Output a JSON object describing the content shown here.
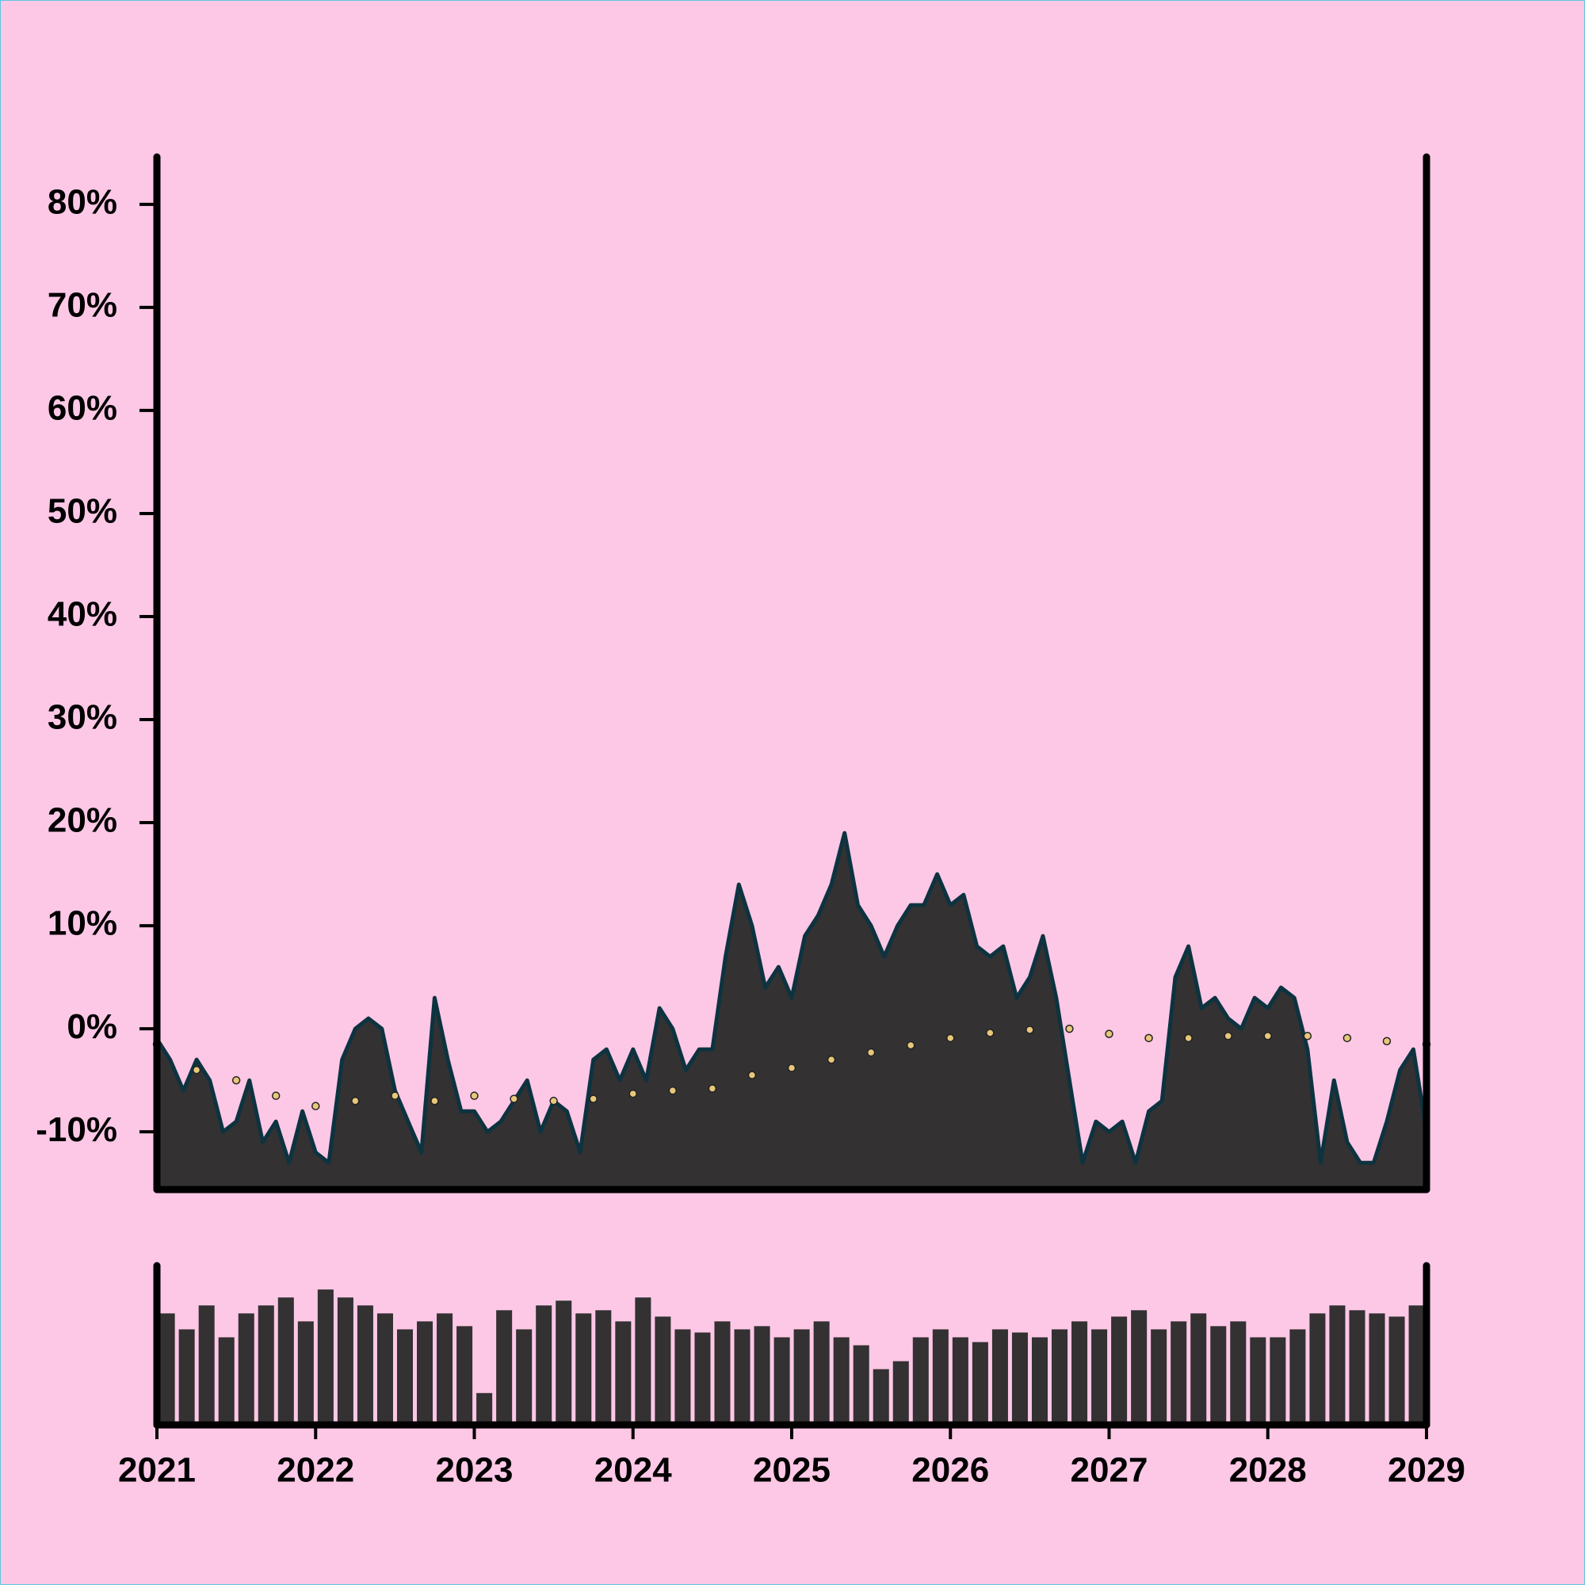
{
  "chart_data": [
    {
      "type": "area",
      "xlim": [
        2021,
        2029
      ],
      "ylim": [
        -15.6,
        84.6
      ],
      "yticks": [
        {
          "value": -10,
          "label": "-10%"
        },
        {
          "value": 0,
          "label": "0%"
        },
        {
          "value": 10,
          "label": "10%"
        },
        {
          "value": 20,
          "label": "20%"
        },
        {
          "value": 30,
          "label": "30%"
        },
        {
          "value": 40,
          "label": "40%"
        },
        {
          "value": 50,
          "label": "50%"
        },
        {
          "value": 60,
          "label": "60%"
        },
        {
          "value": 70,
          "label": "70%"
        },
        {
          "value": 80,
          "label": "80%"
        }
      ],
      "series": [
        {
          "type": "area",
          "color": "#333132",
          "line_color": "#0d3340",
          "x": [
            2021,
            2021.083,
            2021.167,
            2021.25,
            2021.333,
            2021.417,
            2021.5,
            2021.583,
            2021.667,
            2021.75,
            2021.833,
            2021.917,
            2022,
            2022.083,
            2022.167,
            2022.25,
            2022.333,
            2022.417,
            2022.5,
            2022.583,
            2022.667,
            2022.75,
            2022.833,
            2022.917,
            2023,
            2023.083,
            2023.167,
            2023.25,
            2023.333,
            2023.417,
            2023.5,
            2023.583,
            2023.667,
            2023.75,
            2023.833,
            2023.917,
            2024,
            2024.083,
            2024.167,
            2024.25,
            2024.333,
            2024.417,
            2024.5,
            2024.583,
            2024.667,
            2024.75,
            2024.833,
            2024.917,
            2025,
            2025.083,
            2025.167,
            2025.25,
            2025.333,
            2025.417,
            2025.5,
            2025.583,
            2025.667,
            2025.75,
            2025.833,
            2025.917,
            2026,
            2026.083,
            2026.167,
            2026.25,
            2026.333,
            2026.417,
            2026.5,
            2026.583,
            2026.667,
            2026.75,
            2026.833,
            2026.917,
            2027,
            2027.083,
            2027.167,
            2027.25,
            2027.333,
            2027.417,
            2027.5,
            2027.583,
            2027.667,
            2027.75,
            2027.833,
            2027.917,
            2028,
            2028.083,
            2028.167,
            2028.25,
            2028.333,
            2028.417,
            2028.5,
            2028.583,
            2028.667,
            2028.75,
            2028.833,
            2028.917,
            2029
          ],
          "values": [
            -1,
            -3,
            -6,
            -3,
            -5,
            -10,
            -9,
            -5,
            -11,
            -9,
            -13,
            -8,
            -12,
            -13,
            -3,
            0,
            1,
            0,
            -6,
            -9,
            -12,
            3,
            -3,
            -8,
            -8,
            -10,
            -9,
            -7,
            -5,
            -10,
            -7,
            -8,
            -12,
            -3,
            -2,
            -5,
            -2,
            -5,
            2,
            0,
            -4,
            -2,
            -2,
            7,
            14,
            10,
            4,
            6,
            3,
            9,
            11,
            14,
            19,
            12,
            10,
            7,
            10,
            12,
            12,
            15,
            12,
            13,
            8,
            7,
            8,
            3,
            5,
            9,
            3,
            -5,
            -13,
            -9,
            -10,
            -9,
            -13,
            -8,
            -7,
            5,
            8,
            2,
            3,
            1,
            0,
            3,
            2,
            4,
            3,
            -2,
            -13,
            -5,
            -11,
            -13,
            -13,
            -9,
            -4,
            -2,
            -10
          ]
        },
        {
          "type": "line",
          "color": "#e8c77a",
          "x": [
            2021,
            2021.25,
            2021.5,
            2021.75,
            2022,
            2022.25,
            2022.5,
            2022.75,
            2023,
            2023.25,
            2023.5,
            2023.75,
            2024,
            2024.25,
            2024.5,
            2024.75,
            2025,
            2025.25,
            2025.5,
            2025.75,
            2026,
            2026.25,
            2026.5,
            2026.75,
            2027,
            2027.25,
            2027.5,
            2027.75,
            2028,
            2028.25,
            2028.5,
            2028.75,
            2029
          ],
          "values": [
            -1.5,
            -4,
            -5,
            -6.5,
            -7.5,
            -7,
            -6.5,
            -7,
            -6.5,
            -6.8,
            -7,
            -6.8,
            -6.3,
            -6,
            -5.8,
            -4.5,
            -3.8,
            -3,
            -2.3,
            -1.6,
            -0.9,
            -0.4,
            -0.1,
            0,
            -0.5,
            -0.9,
            -0.9,
            -0.7,
            -0.7,
            -0.7,
            -0.9,
            -1.2,
            -1.5
          ]
        }
      ]
    },
    {
      "type": "bar",
      "color": "#333132",
      "xlim": [
        2021,
        2029
      ],
      "ylim": [
        0,
        100
      ],
      "xticks": [
        2021,
        2022,
        2023,
        2024,
        2025,
        2026,
        2027,
        2028,
        2029
      ],
      "x": [
        2021.063,
        2021.188,
        2021.313,
        2021.438,
        2021.563,
        2021.688,
        2021.813,
        2021.938,
        2022.063,
        2022.188,
        2022.313,
        2022.438,
        2022.563,
        2022.688,
        2022.813,
        2022.938,
        2023.063,
        2023.188,
        2023.313,
        2023.438,
        2023.563,
        2023.688,
        2023.813,
        2023.938,
        2024.063,
        2024.188,
        2024.313,
        2024.438,
        2024.563,
        2024.688,
        2024.813,
        2024.938,
        2025.063,
        2025.188,
        2025.313,
        2025.438,
        2025.563,
        2025.688,
        2025.813,
        2025.938,
        2026.063,
        2026.188,
        2026.313,
        2026.438,
        2026.563,
        2026.688,
        2026.813,
        2026.938,
        2027.063,
        2027.188,
        2027.313,
        2027.438,
        2027.563,
        2027.688,
        2027.813,
        2027.938,
        2028.063,
        2028.188,
        2028.313,
        2028.438,
        2028.563,
        2028.688,
        2028.813,
        2028.938
      ],
      "values": [
        70,
        60,
        75,
        55,
        70,
        75,
        80,
        65,
        85,
        80,
        75,
        70,
        60,
        65,
        70,
        62,
        20,
        72,
        60,
        75,
        78,
        70,
        72,
        65,
        80,
        68,
        60,
        58,
        65,
        60,
        62,
        55,
        60,
        65,
        55,
        50,
        35,
        40,
        55,
        60,
        55,
        52,
        60,
        58,
        55,
        60,
        65,
        60,
        68,
        72,
        60,
        65,
        70,
        62,
        65,
        55,
        55,
        60,
        70,
        75,
        72,
        70,
        68,
        75
      ]
    }
  ]
}
